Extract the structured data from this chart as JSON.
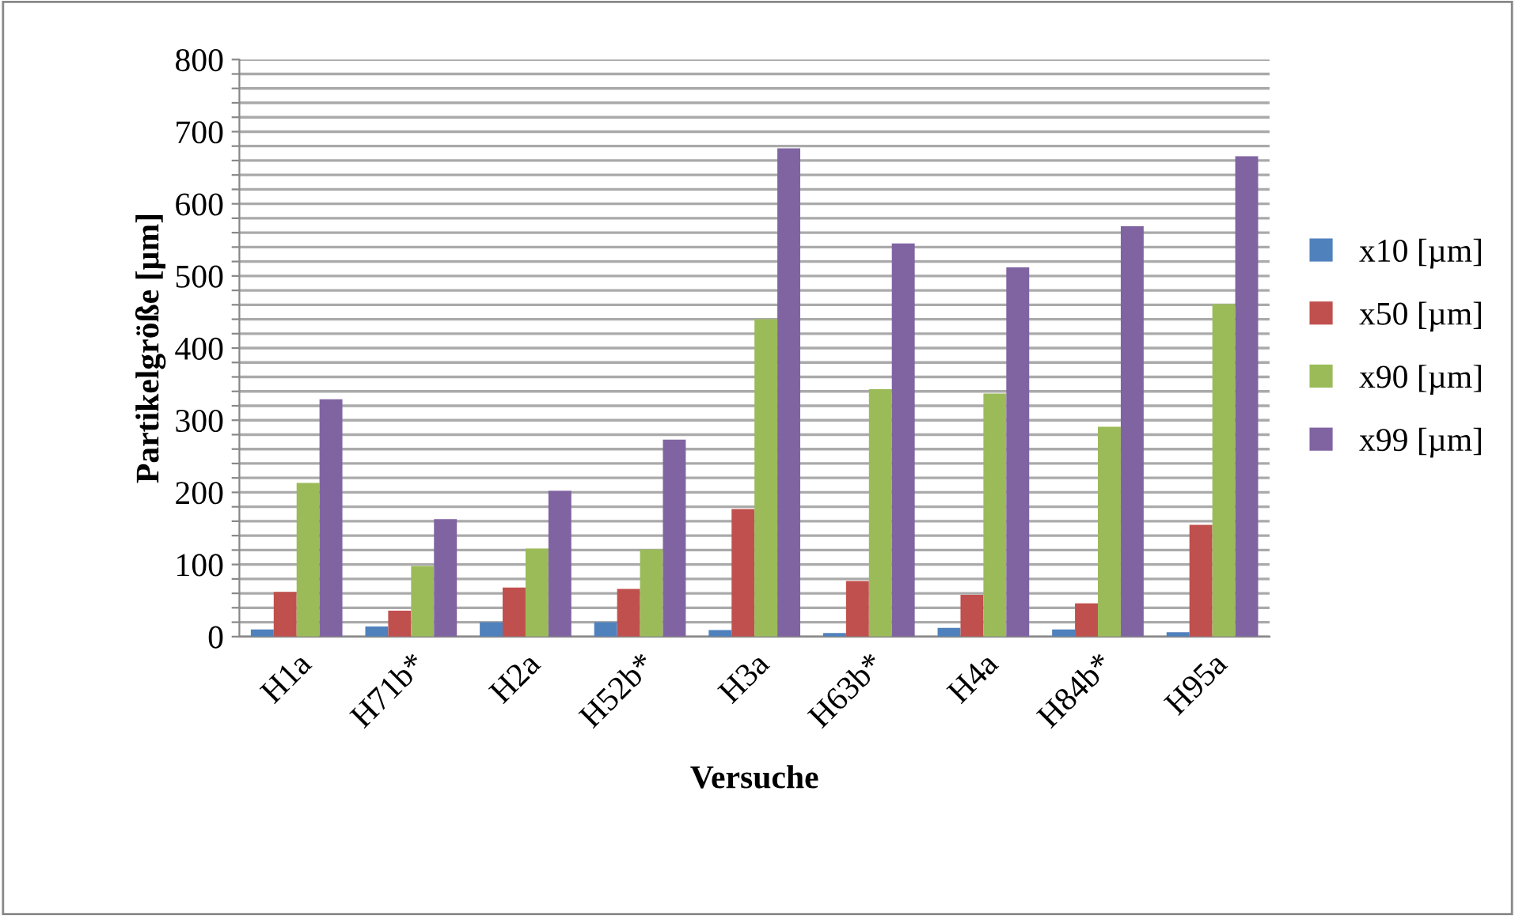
{
  "chart_data": {
    "type": "bar",
    "xlabel": "Versuche",
    "ylabel": "Partikelgröße [µm]",
    "categories": [
      "H1a",
      "H71b*",
      "H2a",
      "H52b*",
      "H3a",
      "H63b*",
      "H4a",
      "H84b*",
      "H95a"
    ],
    "series": [
      {
        "name": "x10 [µm]",
        "color": "#4f81bd",
        "values": [
          10,
          14,
          20,
          20,
          9,
          5,
          12,
          10,
          6
        ]
      },
      {
        "name": "x50 [µm]",
        "color": "#c0504d",
        "values": [
          62,
          36,
          68,
          66,
          177,
          77,
          58,
          46,
          155
        ]
      },
      {
        "name": "x90 [µm]",
        "color": "#9bbb59",
        "values": [
          213,
          98,
          122,
          121,
          440,
          343,
          337,
          291,
          461
        ]
      },
      {
        "name": "x99 [µm]",
        "color": "#8064a2",
        "values": [
          329,
          163,
          202,
          273,
          677,
          545,
          512,
          569,
          666
        ]
      }
    ],
    "ylim": [
      0,
      800
    ],
    "yticks": [
      0,
      {
        "value": 20,
        "label": null
      },
      {
        "value": 40,
        "label": null
      },
      {
        "value": 60,
        "label": null
      },
      {
        "value": 80,
        "label": null
      },
      100,
      {
        "value": 120,
        "label": null
      },
      {
        "value": 140,
        "label": null
      },
      {
        "value": 160,
        "label": null
      },
      {
        "value": 180,
        "label": null
      },
      200,
      {
        "value": 220,
        "label": null
      },
      {
        "value": 240,
        "label": null
      },
      {
        "value": 260,
        "label": null
      },
      {
        "value": 280,
        "label": null
      },
      300,
      {
        "value": 320,
        "label": null
      },
      {
        "value": 340,
        "label": null
      },
      {
        "value": 360,
        "label": null
      },
      {
        "value": 380,
        "label": null
      },
      400,
      {
        "value": 420,
        "label": null
      },
      {
        "value": 440,
        "label": null
      },
      {
        "value": 460,
        "label": null
      },
      {
        "value": 480,
        "label": null
      },
      500,
      {
        "value": 520,
        "label": null
      },
      {
        "value": 540,
        "label": null
      },
      {
        "value": 560,
        "label": null
      },
      {
        "value": 580,
        "label": null
      },
      600,
      {
        "value": 620,
        "label": null
      },
      {
        "value": 640,
        "label": null
      },
      {
        "value": 660,
        "label": null
      },
      {
        "value": 680,
        "label": null
      },
      700,
      {
        "value": 720,
        "label": null
      },
      {
        "value": 740,
        "label": null
      },
      {
        "value": 760,
        "label": null
      },
      {
        "value": 780,
        "label": null
      },
      800
    ],
    "grid": "y",
    "legend": "right"
  }
}
